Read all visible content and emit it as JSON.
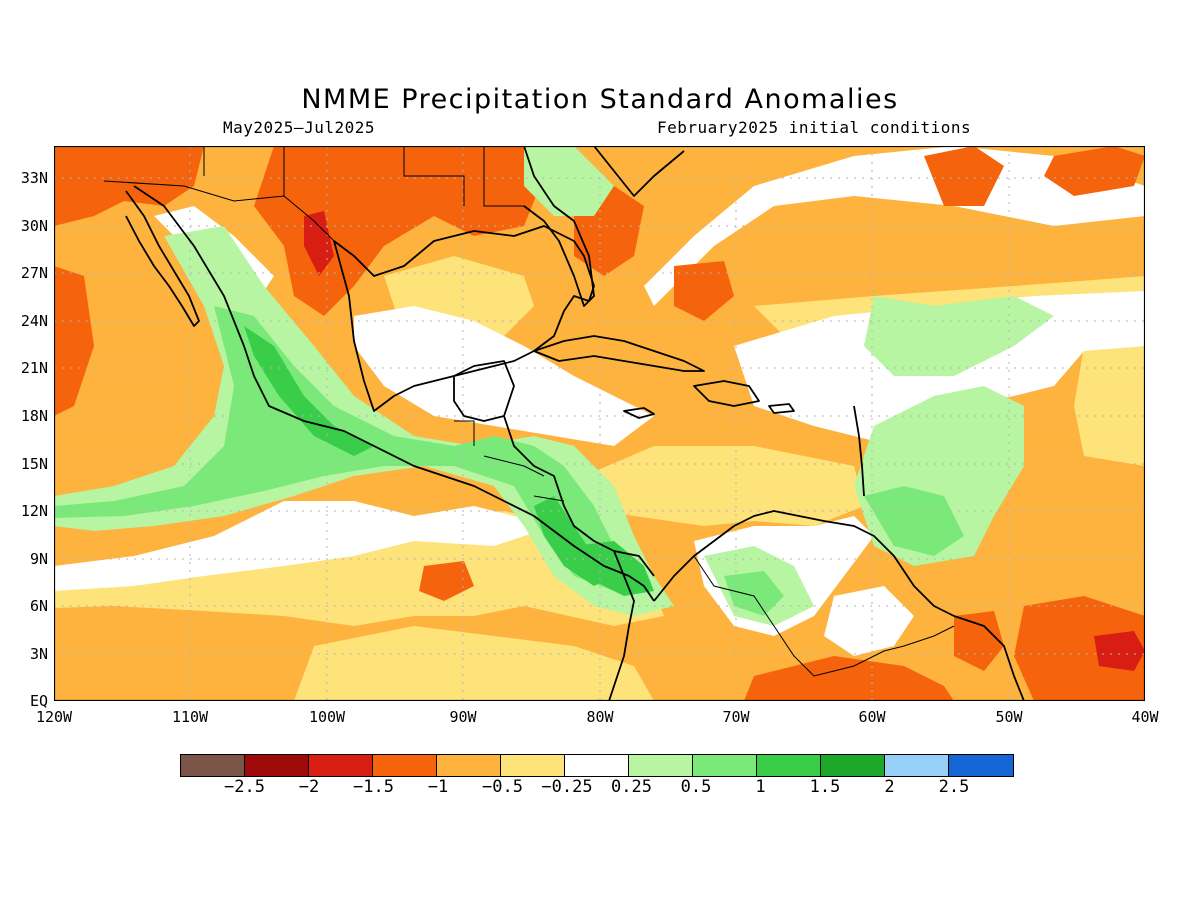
{
  "title": "NMME Precipitation Standard Anomalies",
  "period": "May2025–Jul2025",
  "initial_conditions": "February2025 initial conditions",
  "lat_labels": [
    "33N",
    "30N",
    "27N",
    "24N",
    "21N",
    "18N",
    "15N",
    "12N",
    "9N",
    "6N",
    "3N",
    "EQ"
  ],
  "lon_labels": [
    "120W",
    "110W",
    "100W",
    "90W",
    "80W",
    "70W",
    "60W",
    "50W",
    "40W"
  ],
  "colorbar": {
    "colors": [
      "#7b5548",
      "#9e0a0a",
      "#d81e12",
      "#f5640c",
      "#fdb33e",
      "#fde37a",
      "#ffffff",
      "#b7f5a2",
      "#7ae97a",
      "#39cd49",
      "#1ea82a",
      "#96d0f7",
      "#1366d4"
    ],
    "labels": [
      "−2.5",
      "−2",
      "−1.5",
      "−1",
      "−0.5",
      "−0.25",
      "0.25",
      "0.5",
      "1",
      "1.5",
      "2",
      "2.5"
    ]
  },
  "map": {
    "region": "Caribbean, Central America and Gulf of Mexico",
    "lon_range": [
      -120,
      -40
    ],
    "lat_range": [
      0,
      35
    ],
    "grid": true
  }
}
